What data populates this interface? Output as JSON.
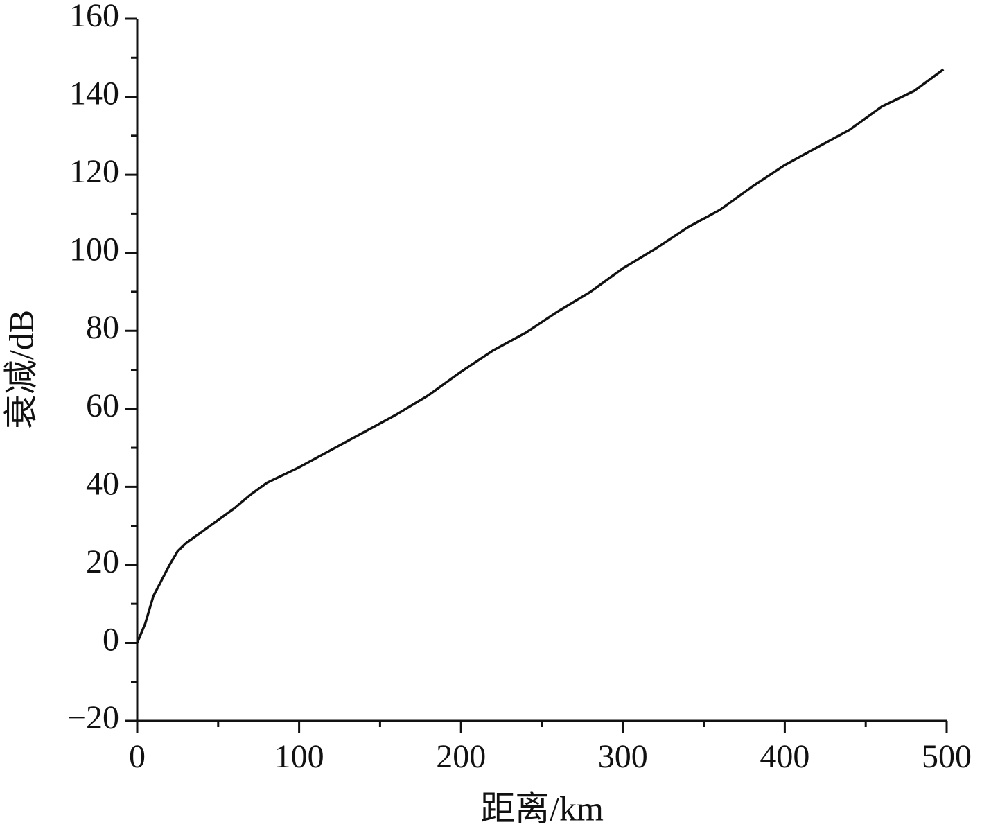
{
  "chart_data": {
    "type": "line",
    "x_label": "距离/km",
    "y_label": "衰减/dB",
    "x": [
      0,
      5,
      10,
      15,
      20,
      25,
      30,
      40,
      50,
      60,
      70,
      80,
      90,
      100,
      120,
      140,
      160,
      170,
      180,
      200,
      220,
      240,
      260,
      280,
      300,
      320,
      340,
      360,
      380,
      400,
      420,
      440,
      460,
      480,
      498
    ],
    "series": [
      {
        "name": "衰减",
        "color": "#111111",
        "values": [
          0,
          5,
          12,
          16,
          20,
          23.5,
          25.5,
          28.5,
          31.5,
          34.5,
          38,
          41,
          43,
          45,
          49.5,
          54,
          58.5,
          61,
          63.5,
          69.5,
          75,
          79.5,
          85,
          90,
          96,
          101,
          106.5,
          111,
          117,
          122.5,
          127,
          131.5,
          137.5,
          141.5,
          147
        ]
      }
    ],
    "xlim": [
      0,
      500
    ],
    "xticks": [
      0,
      100,
      200,
      300,
      400,
      500
    ],
    "ylim": [
      -20,
      160
    ],
    "yticks": [
      {
        "value": -20,
        "label": "−20"
      },
      0,
      20,
      40,
      60,
      80,
      100,
      120,
      140,
      160
    ],
    "grid": false
  }
}
